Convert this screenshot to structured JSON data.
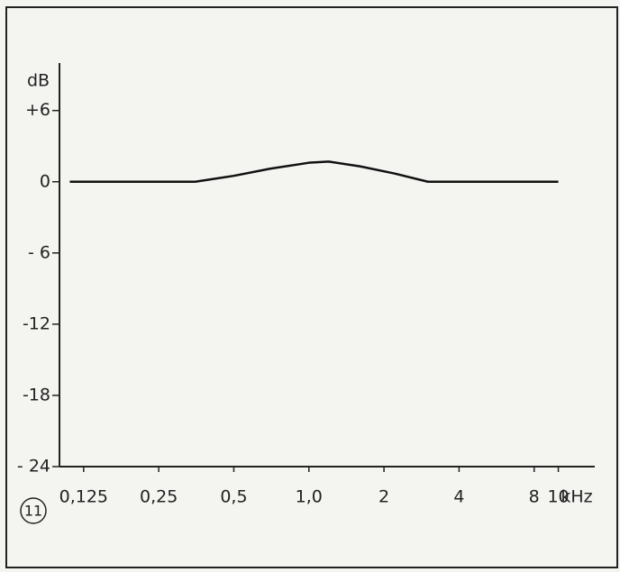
{
  "chart_data": {
    "type": "line",
    "y_label": "dB",
    "x_label": "kHz",
    "annotation": "11",
    "log_x": true,
    "xlim": [
      0.1,
      14
    ],
    "xticks": [
      {
        "value": 0.125,
        "label": "0,125"
      },
      {
        "value": 0.25,
        "label": "0,25"
      },
      {
        "value": 0.5,
        "label": "0,5"
      },
      {
        "value": 1.0,
        "label": "1,0"
      },
      2,
      4,
      8,
      10
    ],
    "ylim": [
      -24,
      10
    ],
    "yticks": [
      {
        "value": 6,
        "label": "+6"
      },
      0,
      {
        "value": -6,
        "label": "- 6"
      },
      -12,
      -18,
      {
        "value": -24,
        "label": "- 24"
      }
    ],
    "series": [
      {
        "color": "#111111",
        "x": [
          0.11,
          0.2,
          0.35,
          0.5,
          0.7,
          1.0,
          1.2,
          1.6,
          2.2,
          3.0,
          4,
          6,
          10
        ],
        "values": [
          0,
          0,
          0,
          0.5,
          1.1,
          1.6,
          1.7,
          1.3,
          0.7,
          0,
          0,
          0,
          0
        ]
      }
    ]
  }
}
